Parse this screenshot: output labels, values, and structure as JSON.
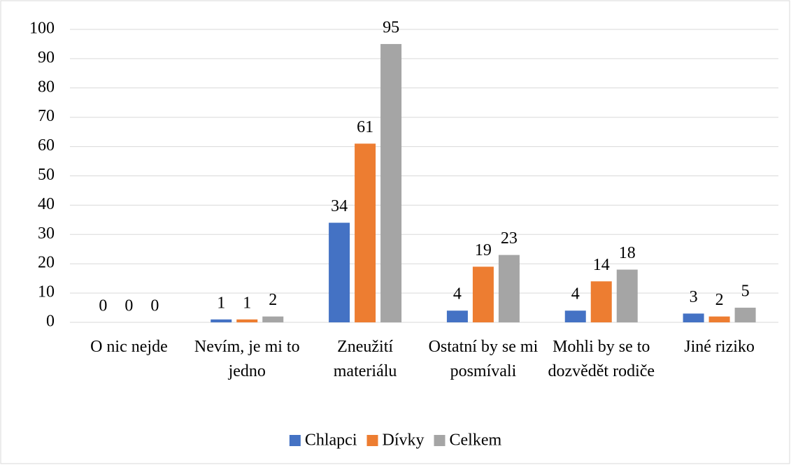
{
  "chart_data": {
    "type": "bar",
    "categories": [
      "O nic nejde",
      "Nevím, je mi to jedno",
      "Zneužití materiálu",
      "Ostatní by se mi posmívali",
      "Mohli by se to dozvědět rodiče",
      "Jiné riziko"
    ],
    "series": [
      {
        "name": "Chlapci",
        "color": "#4472c4",
        "values": [
          0,
          1,
          34,
          4,
          4,
          3
        ]
      },
      {
        "name": "Dívky",
        "color": "#ed7d31",
        "values": [
          0,
          1,
          61,
          19,
          14,
          2
        ]
      },
      {
        "name": "Celkem",
        "color": "#a5a5a5",
        "values": [
          0,
          2,
          95,
          23,
          18,
          5
        ]
      }
    ],
    "ylim": [
      0,
      100
    ],
    "yticks": [
      0,
      10,
      20,
      30,
      40,
      50,
      60,
      70,
      80,
      90,
      100
    ],
    "grid": true,
    "legend": "bottom"
  }
}
